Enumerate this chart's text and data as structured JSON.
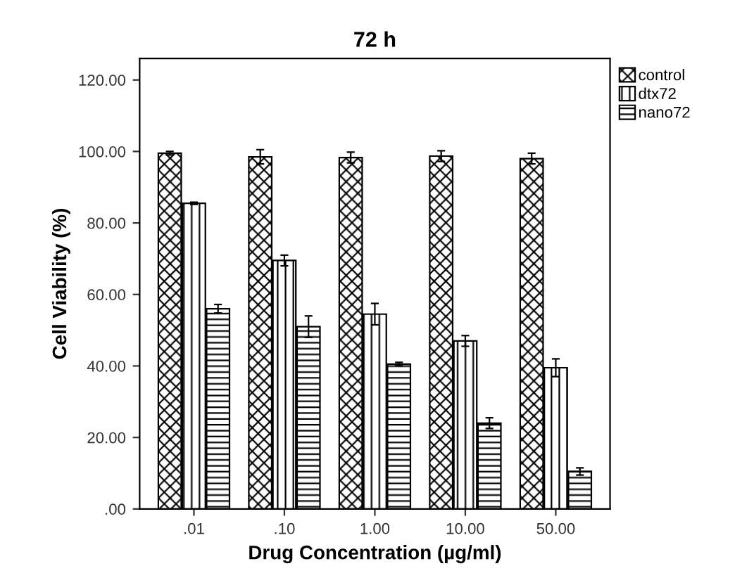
{
  "chart_data": {
    "type": "bar",
    "title": "72 h",
    "xlabel": "Drug Concentration (µg/ml)",
    "ylabel": "Cell Viability (%)",
    "categories": [
      ".01",
      ".10",
      "1.00",
      "10.00",
      "50.00"
    ],
    "series": [
      {
        "name": "control",
        "color": "#000000",
        "values": [
          99.5,
          98.5,
          98.3,
          98.7,
          98.0
        ],
        "errors": [
          0.5,
          2,
          1.5,
          1.5,
          1.5
        ]
      },
      {
        "name": "dtx72",
        "color": "#000000",
        "values": [
          85.5,
          69.5,
          54.5,
          47.0,
          39.5
        ],
        "errors": [
          0.3,
          1.5,
          3,
          1.5,
          2.5
        ]
      },
      {
        "name": "nano72",
        "color": "#000000",
        "values": [
          56.0,
          51.0,
          40.5,
          24.0,
          10.5
        ],
        "errors": [
          1.2,
          3,
          0.5,
          1.5,
          1
        ]
      }
    ],
    "ylim": [
      0,
      126
    ],
    "yticks": [
      {
        "value": 0,
        "label": ".00"
      },
      {
        "value": 20,
        "label": "20.00"
      },
      {
        "value": 40,
        "label": "40.00"
      },
      {
        "value": 60,
        "label": "60.00"
      },
      {
        "value": 80,
        "label": "80.00"
      },
      {
        "value": 100,
        "label": "100.00"
      },
      {
        "value": 120,
        "label": "120.00"
      }
    ],
    "grid": false,
    "legend": "top right"
  }
}
